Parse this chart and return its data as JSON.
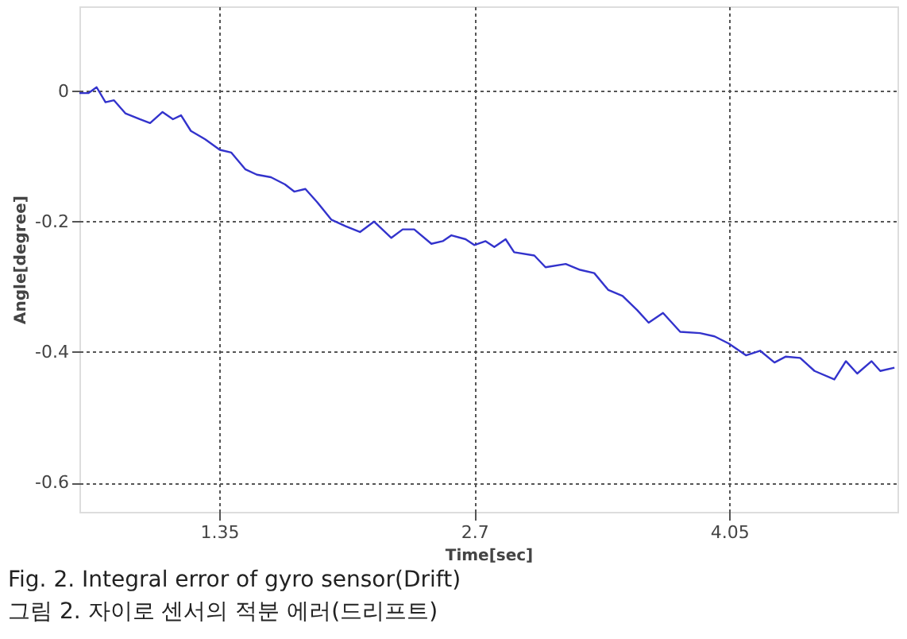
{
  "chart_data": {
    "type": "line",
    "xlabel": "Time[sec]",
    "ylabel": "Angle[degree]",
    "xlim": [
      0.61,
      4.94
    ],
    "xticks": [
      1.35,
      2.7,
      4.05
    ],
    "ylim": [
      -0.645,
      0.13
    ],
    "yticks": [
      0,
      -0.2,
      -0.4,
      -0.6
    ],
    "grid": true,
    "x": [
      0.61,
      0.657,
      0.701,
      0.748,
      0.793,
      0.853,
      0.929,
      0.984,
      1.05,
      1.105,
      1.148,
      1.2,
      1.277,
      1.353,
      1.413,
      1.489,
      1.549,
      1.624,
      1.698,
      1.747,
      1.806,
      1.868,
      1.943,
      2.019,
      2.095,
      2.17,
      2.261,
      2.321,
      2.382,
      2.473,
      2.533,
      2.579,
      2.654,
      2.7,
      2.76,
      2.806,
      2.866,
      2.911,
      3.018,
      3.077,
      3.184,
      3.26,
      3.335,
      3.41,
      3.485,
      3.563,
      3.623,
      3.699,
      3.79,
      3.895,
      3.972,
      4.047,
      4.138,
      4.213,
      4.289,
      4.349,
      4.425,
      4.501,
      4.606,
      4.667,
      4.727,
      4.803,
      4.849,
      4.924
    ],
    "series": [
      {
        "color": "#3333cc",
        "values": [
          -0.003,
          -0.003,
          0.006,
          -0.017,
          -0.014,
          -0.034,
          -0.043,
          -0.049,
          -0.032,
          -0.043,
          -0.037,
          -0.061,
          -0.074,
          -0.09,
          -0.094,
          -0.12,
          -0.128,
          -0.132,
          -0.143,
          -0.154,
          -0.15,
          -0.17,
          -0.197,
          -0.207,
          -0.216,
          -0.2,
          -0.225,
          -0.212,
          -0.212,
          -0.234,
          -0.23,
          -0.221,
          -0.227,
          -0.236,
          -0.23,
          -0.239,
          -0.227,
          -0.247,
          -0.252,
          -0.27,
          -0.265,
          -0.274,
          -0.279,
          -0.305,
          -0.314,
          -0.336,
          -0.355,
          -0.34,
          -0.369,
          -0.371,
          -0.376,
          -0.387,
          -0.405,
          -0.398,
          -0.416,
          -0.407,
          -0.409,
          -0.429,
          -0.442,
          -0.414,
          -0.433,
          -0.414,
          -0.429,
          -0.424
        ]
      }
    ],
    "line_style": "solid",
    "marker": "none",
    "annotations": [
      "Fig.    2.    Integral  error  of  gyro  sensor(Drift)",
      "그림  2.    자이로  센서의  적분  에러(드리프트)"
    ]
  }
}
